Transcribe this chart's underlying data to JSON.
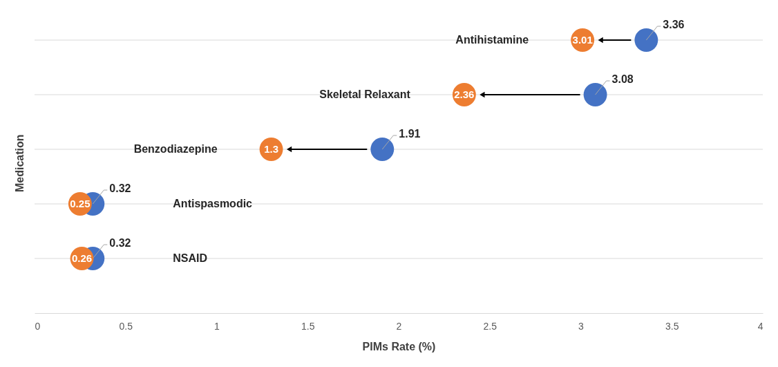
{
  "chart_data": {
    "type": "scatter",
    "orientation": "horizontal",
    "xlabel": "PIMs Rate (%)",
    "ylabel": "Medication",
    "categories": [
      "Antihistamine",
      "Skeletal Relaxant",
      "Benzodiazepine",
      "Antispasmodic",
      "NSAID"
    ],
    "series": [
      {
        "color": "#4472c4",
        "values": [
          3.36,
          3.08,
          1.91,
          0.32,
          0.32
        ]
      },
      {
        "color": "#ed7d31",
        "values": [
          3.01,
          2.36,
          1.3,
          0.25,
          0.26
        ]
      }
    ],
    "xlim": [
      0,
      4
    ],
    "xticks": [
      0,
      0.5,
      1,
      1.5,
      2,
      2.5,
      3,
      3.5,
      4
    ],
    "tick_labels": "x",
    "grid": "y",
    "marker": "circle",
    "data_labels": true
  }
}
